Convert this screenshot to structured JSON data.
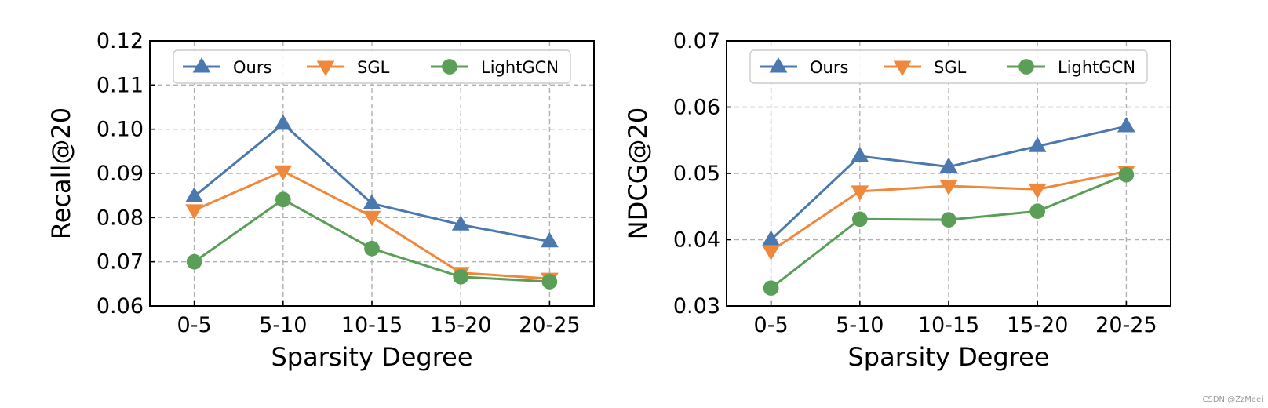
{
  "chart_data": [
    {
      "type": "line",
      "title": "",
      "xlabel": "Sparsity Degree",
      "ylabel": "Recall@20",
      "categories": [
        "0-5",
        "5-10",
        "10-15",
        "15-20",
        "20-25"
      ],
      "ylim": [
        0.06,
        0.12
      ],
      "yticks": [
        "0.06",
        "0.07",
        "0.08",
        "0.09",
        "0.10",
        "0.11",
        "0.12"
      ],
      "grid": true,
      "legend_position": "top",
      "series": [
        {
          "name": "Ours",
          "marker": "triangle-up",
          "color": "#4C78B0",
          "values": [
            0.0848,
            0.1012,
            0.0832,
            0.0784,
            0.0746
          ]
        },
        {
          "name": "SGL",
          "marker": "triangle-down",
          "color": "#F0883C",
          "values": [
            0.0817,
            0.0905,
            0.0802,
            0.0675,
            0.0662
          ]
        },
        {
          "name": "LightGCN",
          "marker": "circle",
          "color": "#5A9E57",
          "values": [
            0.07,
            0.0841,
            0.073,
            0.0666,
            0.0655
          ]
        }
      ]
    },
    {
      "type": "line",
      "title": "",
      "xlabel": "Sparsity Degree",
      "ylabel": "NDCG@20",
      "categories": [
        "0-5",
        "5-10",
        "10-15",
        "15-20",
        "20-25"
      ],
      "ylim": [
        0.03,
        0.07
      ],
      "yticks": [
        "0.03",
        "0.04",
        "0.05",
        "0.06",
        "0.07"
      ],
      "grid": true,
      "legend_position": "top",
      "series": [
        {
          "name": "Ours",
          "marker": "triangle-up",
          "color": "#4C78B0",
          "values": [
            0.04,
            0.0526,
            0.051,
            0.0541,
            0.0571
          ]
        },
        {
          "name": "SGL",
          "marker": "triangle-down",
          "color": "#F0883C",
          "values": [
            0.0383,
            0.0473,
            0.0481,
            0.0476,
            0.0503
          ]
        },
        {
          "name": "LightGCN",
          "marker": "circle",
          "color": "#5A9E57",
          "values": [
            0.0327,
            0.0431,
            0.043,
            0.0443,
            0.0498
          ]
        }
      ]
    }
  ],
  "watermark": "CSDN @ZzMeei"
}
